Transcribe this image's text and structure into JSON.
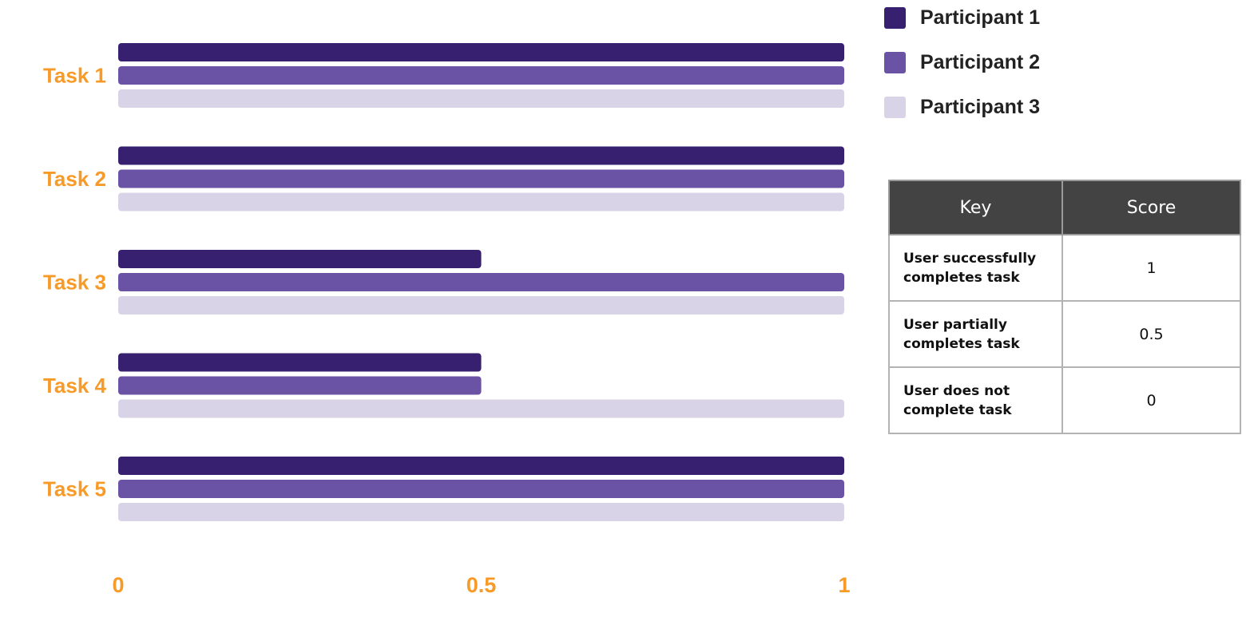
{
  "chart_data": {
    "type": "bar",
    "orientation": "horizontal",
    "categories": [
      "Task 1",
      "Task 2",
      "Task 3",
      "Task 4",
      "Task 5"
    ],
    "series": [
      {
        "name": "Participant 1",
        "color": "#37206f",
        "values": [
          1,
          1,
          0.5,
          0.5,
          1
        ]
      },
      {
        "name": "Participant 2",
        "color": "#6a52a5",
        "values": [
          1,
          1,
          1,
          0.5,
          1
        ]
      },
      {
        "name": "Participant 3",
        "color": "#d9d3e8",
        "values": [
          1,
          1,
          1,
          1,
          1
        ]
      }
    ],
    "xlim": [
      0,
      1
    ],
    "xticks": [
      0,
      0.5,
      1
    ],
    "xtick_labels": [
      "0",
      "0.5",
      "1"
    ],
    "label_color": "#f79a28",
    "grid": false,
    "legend_position": "top-right"
  },
  "key_table": {
    "headers": {
      "key": "Key",
      "score": "Score"
    },
    "rows": [
      {
        "key": "User successfully completes task",
        "score": "1"
      },
      {
        "key": "User partially completes task",
        "score": "0.5"
      },
      {
        "key": "User does not complete task",
        "score": "0"
      }
    ]
  }
}
